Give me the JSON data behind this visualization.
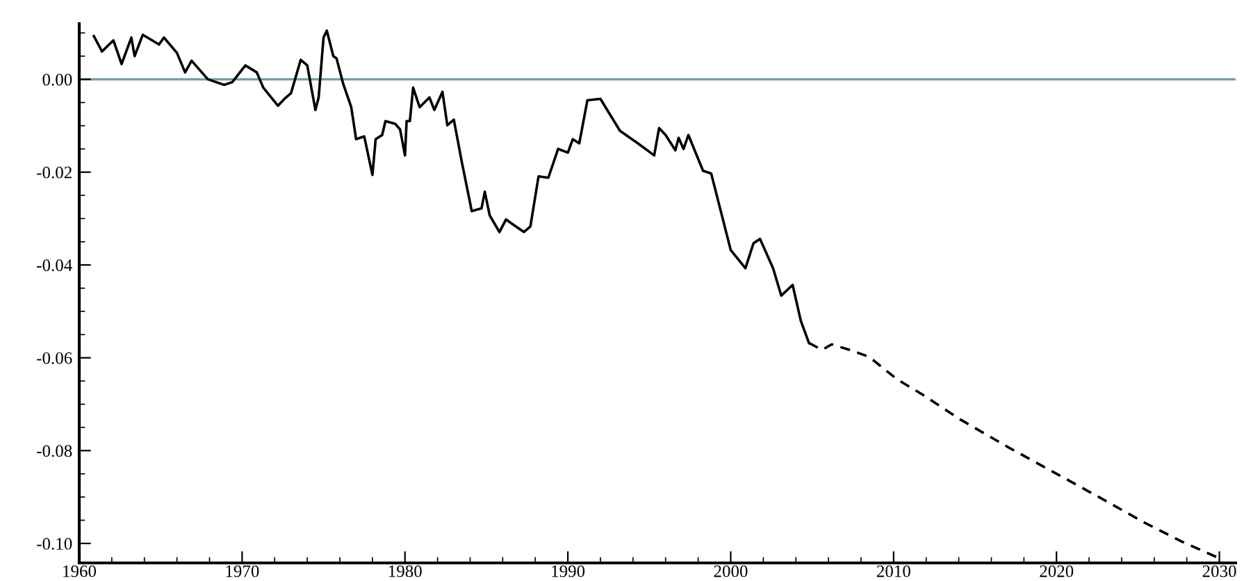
{
  "chart_data": {
    "type": "line",
    "xlim": [
      1960,
      2031
    ],
    "ylim": [
      -0.1042,
      0.012
    ],
    "xticks": [
      1960,
      1970,
      1980,
      1990,
      2000,
      2010,
      2020,
      2030
    ],
    "yticks": [
      {
        "value": 0,
        "label": "0.00"
      },
      {
        "value": -0.02,
        "label": "-0.02"
      },
      {
        "value": -0.04,
        "label": "-0.04"
      },
      {
        "value": -0.06,
        "label": "-0.06"
      },
      {
        "value": -0.08,
        "label": "-0.08"
      },
      {
        "value": -0.1,
        "label": "-0.10"
      }
    ],
    "grid": false,
    "marker": "none",
    "ref_lines": [
      {
        "axis": "y",
        "value": 0,
        "color": "#6f9ca3"
      }
    ],
    "series": [
      {
        "color": "#000000",
        "line_style": "solid",
        "x": [
          1960.9,
          1961.4,
          1962.1,
          1962.6,
          1963.2,
          1963.4,
          1963.9,
          1964.9,
          1965.2,
          1966.0,
          1966.5,
          1966.9,
          1967.9,
          1968.9,
          1969.4,
          1970.2,
          1970.9,
          1971.3,
          1972.2,
          1972.6,
          1973.0,
          1973.6,
          1974.0,
          1974.5,
          1974.7,
          1975.0,
          1975.2,
          1975.6,
          1975.8,
          1976.2,
          1976.7,
          1977.0,
          1977.5,
          1978.0,
          1978.2,
          1978.6,
          1978.8,
          1979.4,
          1979.7,
          1980.0,
          1980.1,
          1980.3,
          1980.5,
          1980.9,
          1981.5,
          1981.8,
          1982.3,
          1982.6,
          1983.0,
          1983.5,
          1984.1,
          1984.7,
          1984.9,
          1985.2,
          1985.8,
          1986.2,
          1986.8,
          1987.3,
          1987.7,
          1988.2,
          1988.8,
          1989.4,
          1990.0,
          1990.3,
          1990.7,
          1991.2,
          1992.0,
          1993.2,
          1994.3,
          1995.3,
          1995.6,
          1996.0,
          1996.6,
          1996.8,
          1997.1,
          1997.4,
          1998.3,
          1998.8,
          2000.0,
          2000.9,
          2001.4,
          2001.8,
          2002.6,
          2003.1,
          2003.8,
          2004.3,
          2004.8
        ],
        "values": [
          0.0093,
          0.006,
          0.0084,
          0.0033,
          0.009,
          0.005,
          0.0096,
          0.0075,
          0.009,
          0.0057,
          0.0015,
          0.004,
          0.0,
          -0.0012,
          -0.0006,
          0.003,
          0.0015,
          -0.0018,
          -0.0057,
          -0.0042,
          -0.003,
          0.0042,
          0.003,
          -0.0066,
          -0.0039,
          0.009,
          0.0105,
          0.005,
          0.0045,
          -0.0009,
          -0.006,
          -0.0129,
          -0.0123,
          -0.0206,
          -0.0129,
          -0.012,
          -0.009,
          -0.0096,
          -0.0108,
          -0.0164,
          -0.009,
          -0.009,
          -0.0018,
          -0.006,
          -0.0039,
          -0.0066,
          -0.0027,
          -0.0099,
          -0.0087,
          -0.018,
          -0.0284,
          -0.0278,
          -0.0242,
          -0.0293,
          -0.0329,
          -0.0302,
          -0.0317,
          -0.0329,
          -0.0317,
          -0.0209,
          -0.0212,
          -0.015,
          -0.0158,
          -0.0129,
          -0.0138,
          -0.0045,
          -0.0042,
          -0.0111,
          -0.0138,
          -0.0164,
          -0.0105,
          -0.012,
          -0.0153,
          -0.0126,
          -0.015,
          -0.012,
          -0.0197,
          -0.0203,
          -0.0368,
          -0.0407,
          -0.0353,
          -0.0344,
          -0.0407,
          -0.0466,
          -0.0443,
          -0.052,
          -0.0568
        ]
      },
      {
        "color": "#000000",
        "line_style": "dashed",
        "x": [
          2004.8,
          2005.6,
          2006.2,
          2007.3,
          2008.5,
          2010.2,
          2011.9,
          2014.1,
          2017.0,
          2019.8,
          2022.6,
          2025.5,
          2027.7,
          2030.0
        ],
        "values": [
          -0.0568,
          -0.0583,
          -0.0571,
          -0.0583,
          -0.0598,
          -0.0646,
          -0.0682,
          -0.0733,
          -0.0792,
          -0.0846,
          -0.09,
          -0.0957,
          -0.0996,
          -0.1032
        ]
      }
    ]
  }
}
